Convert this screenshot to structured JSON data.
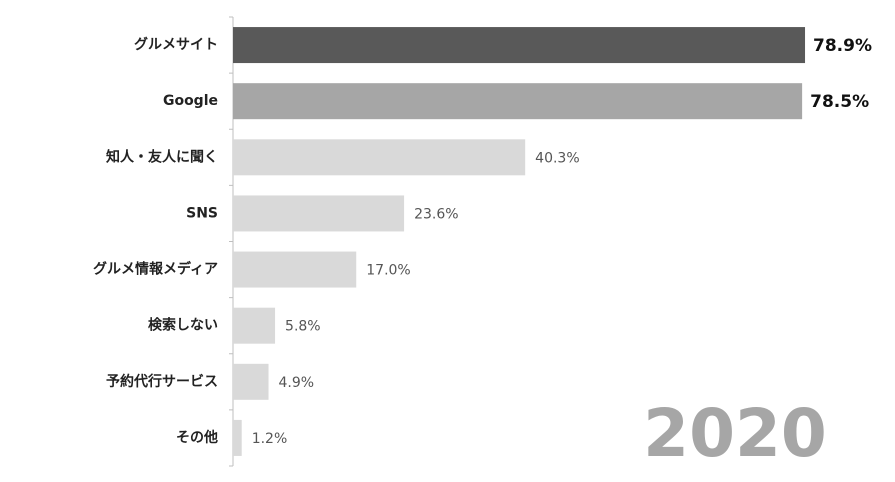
{
  "chart_data": {
    "type": "bar",
    "orientation": "horizontal",
    "categories": [
      "グルメサイト",
      "Google",
      "知人・友人に聞く",
      "SNS",
      "グルメ情報メディア",
      "検索しない",
      "予約代行サービス",
      "その他"
    ],
    "values": [
      78.9,
      78.5,
      40.3,
      23.6,
      17.0,
      5.8,
      4.9,
      1.2
    ],
    "value_labels": [
      "78.9%",
      "78.5%",
      "40.3%",
      "23.6%",
      "17.0%",
      "5.8%",
      "4.9%",
      "1.2%"
    ],
    "colors": [
      "#595959",
      "#a6a6a6",
      "#d9d9d9",
      "#d9d9d9",
      "#d9d9d9",
      "#d9d9d9",
      "#d9d9d9",
      "#d9d9d9"
    ],
    "annotation": "2020"
  }
}
